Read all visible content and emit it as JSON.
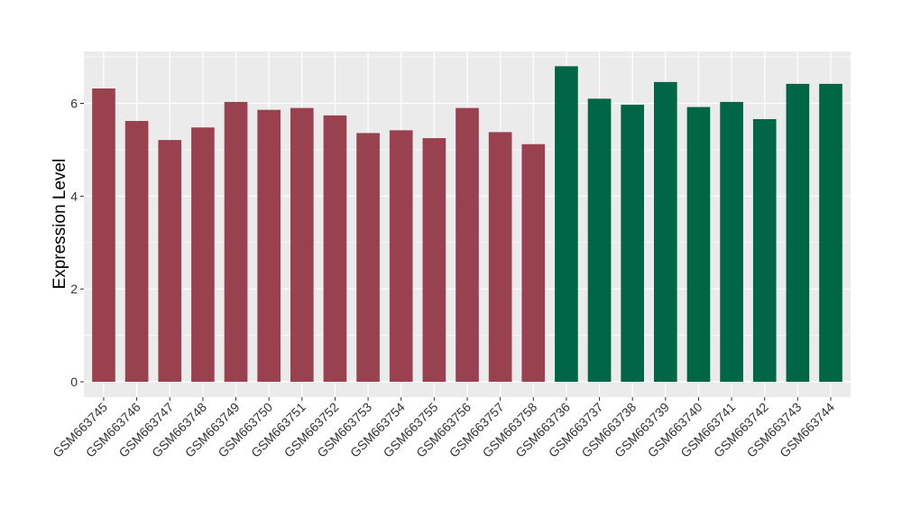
{
  "chart_data": {
    "type": "bar",
    "title": "",
    "xlabel": "",
    "ylabel": "Expression Level",
    "ylim": [
      0,
      7.1
    ],
    "yticks": [
      0,
      2,
      4,
      6
    ],
    "grid": true,
    "legend": "none",
    "categories": [
      "GSM663745",
      "GSM663746",
      "GSM663747",
      "GSM663748",
      "GSM663749",
      "GSM663750",
      "GSM663751",
      "GSM663752",
      "GSM663753",
      "GSM663754",
      "GSM663755",
      "GSM663756",
      "GSM663757",
      "GSM663758",
      "GSM663736",
      "GSM663737",
      "GSM663738",
      "GSM663739",
      "GSM663740",
      "GSM663741",
      "GSM663742",
      "GSM663743",
      "GSM663744"
    ],
    "values": [
      6.32,
      5.62,
      5.21,
      5.48,
      6.03,
      5.86,
      5.9,
      5.74,
      5.36,
      5.42,
      5.25,
      5.9,
      5.38,
      5.12,
      6.8,
      6.1,
      5.97,
      6.46,
      5.92,
      6.03,
      5.66,
      6.42,
      6.42
    ],
    "groups": [
      0,
      0,
      0,
      0,
      0,
      0,
      0,
      0,
      0,
      0,
      0,
      0,
      0,
      0,
      1,
      1,
      1,
      1,
      1,
      1,
      1,
      1,
      1
    ],
    "colors": [
      "#9a4150",
      "#006645"
    ]
  },
  "colors": {
    "panel_background": "#ebebeb",
    "grid": "#ffffff",
    "axis_text": "#333333"
  }
}
